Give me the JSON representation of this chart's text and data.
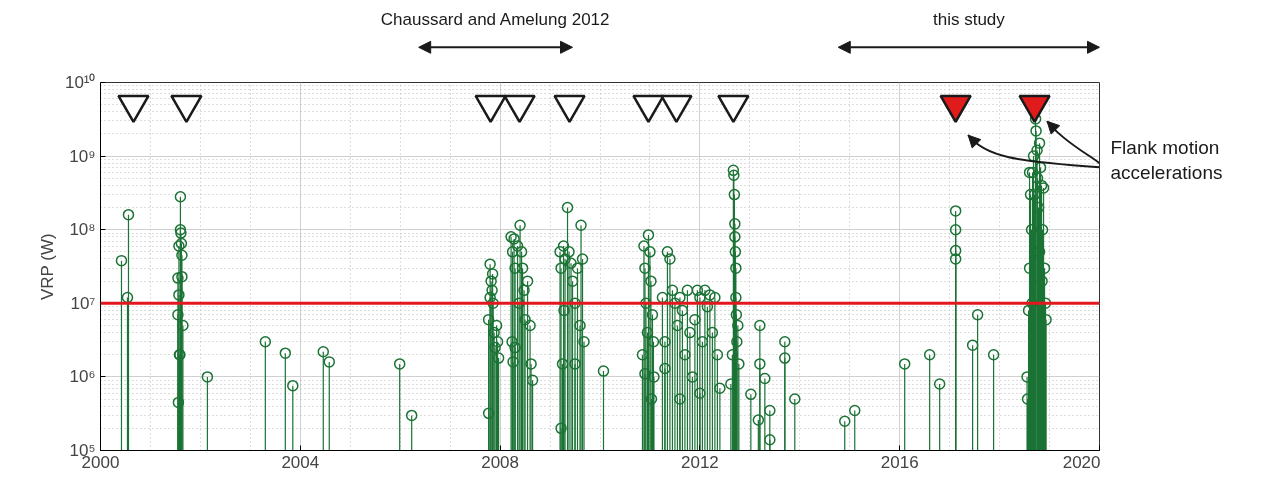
{
  "chart_data": {
    "type": "lollipop",
    "ylabel": "VRP (W)",
    "log": "y",
    "grid": true,
    "marker": "circle",
    "xlim": [
      2000,
      2020
    ],
    "xticks": [
      2000,
      2004,
      2008,
      2012,
      2016,
      2020
    ],
    "ylim": [
      100000,
      10000000000
    ],
    "yticks": [
      {
        "value": 100000,
        "label": "10⁵"
      },
      {
        "value": 1000000,
        "label": "10⁶"
      },
      {
        "value": 10000000,
        "label": "10⁷"
      },
      {
        "value": 100000000,
        "label": "10⁸"
      },
      {
        "value": 1000000000,
        "label": "10⁹"
      },
      {
        "value": 10000000000,
        "label": "10¹⁰"
      }
    ],
    "ref_lines": [
      {
        "axis": "y",
        "value": 10000000,
        "label": null,
        "color": "#e3171e"
      }
    ],
    "annotations": [
      "Chaussard and Amelung 2012",
      "this study",
      "Flank motion accelerations"
    ],
    "series": [
      {
        "color": "#1b7335",
        "x": [
          2000.42,
          2000.54,
          2000.56,
          2001.55,
          2001.57,
          2001.58,
          2001.6,
          2001.6,
          2001.61,
          2001.62,
          2001.55,
          2001.57,
          2001.63,
          2001.63,
          2001.65,
          2001.56,
          2001.59,
          2002.14,
          2003.3,
          2003.7,
          2003.85,
          2004.46,
          2004.58,
          2005.99,
          2006.23,
          2007.77,
          2007.77,
          2007.8,
          2007.82,
          2007.84,
          2007.86,
          2007.88,
          2007.9,
          2007.93,
          2007.95,
          2007.97,
          2007.8,
          2007.85,
          2008.22,
          2008.25,
          2008.28,
          2008.3,
          2008.35,
          2008.4,
          2008.43,
          2008.45,
          2008.48,
          2008.5,
          2008.24,
          2008.26,
          2008.55,
          2008.6,
          2008.62,
          2008.65,
          2008.38,
          2008.3,
          2009.2,
          2009.22,
          2009.25,
          2009.27,
          2009.3,
          2009.35,
          2009.38,
          2009.42,
          2009.45,
          2009.5,
          2009.55,
          2009.6,
          2009.62,
          2009.65,
          2009.68,
          2009.22,
          2009.28,
          2009.5,
          2010.07,
          2010.85,
          2010.88,
          2010.9,
          2010.92,
          2010.95,
          2010.97,
          2011.0,
          2011.02,
          2011.05,
          2011.07,
          2011.08,
          2010.9,
          2011.03,
          2011.25,
          2011.3,
          2011.35,
          2011.4,
          2011.45,
          2011.5,
          2011.55,
          2011.6,
          2011.65,
          2011.7,
          2011.75,
          2011.8,
          2011.85,
          2011.9,
          2011.95,
          2012.0,
          2012.05,
          2012.1,
          2012.15,
          2012.2,
          2012.25,
          2012.3,
          2012.35,
          2012.4,
          2011.3,
          2011.6,
          2012.0,
          2012.62,
          2012.65,
          2012.67,
          2012.68,
          2012.69,
          2012.7,
          2012.7,
          2012.71,
          2012.72,
          2012.72,
          2012.73,
          2012.74,
          2012.76,
          2012.78,
          2013.02,
          2013.2,
          2013.2,
          2013.17,
          2013.3,
          2013.4,
          2013.4,
          2013.7,
          2013.7,
          2013.9,
          2014.9,
          2015.1,
          2016.1,
          2016.6,
          2016.8,
          2017.12,
          2017.12,
          2017.12,
          2017.12,
          2017.46,
          2017.56,
          2017.88,
          2018.55,
          2018.56,
          2018.58,
          2018.6,
          2018.62,
          2018.64,
          2018.66,
          2018.68,
          2018.7,
          2018.72,
          2018.73,
          2018.75,
          2018.76,
          2018.78,
          2018.8,
          2018.82,
          2018.84,
          2018.86,
          2018.88,
          2018.9,
          2018.92,
          2018.93,
          2018.6,
          2018.65,
          2018.8,
          2018.85
        ],
        "values": [
          38000000,
          12000000,
          160000000,
          22000000,
          60000000,
          2000000,
          280000000,
          100000000,
          90000000,
          65000000,
          7000000,
          13000000,
          45000000,
          23000000,
          5000000,
          450000,
          2000000,
          1000000,
          3000000,
          2100000,
          760000,
          2200000,
          1600000,
          1500000,
          300000,
          320000,
          6000000,
          34000000,
          20000000,
          15000000,
          10000000,
          4000000,
          2500000,
          5000000,
          3000000,
          1800000,
          12000000,
          25000000,
          80000000,
          50000000,
          75000000,
          30000000,
          60000000,
          115000000,
          50000000,
          30000000,
          15000000,
          6000000,
          3000000,
          1600000,
          20000000,
          5000000,
          1500000,
          900000,
          10000000,
          2500000,
          50000000,
          30000000,
          1500000,
          60000000,
          40000000,
          200000000,
          50000000,
          35000000,
          20000000,
          10000000,
          30000000,
          5000000,
          115000000,
          40000000,
          3000000,
          200000,
          8000000,
          1500000,
          1200000,
          2000000,
          60000000,
          30000000,
          10000000,
          4000000,
          85000000,
          50000000,
          20000000,
          7000000,
          3000000,
          1000000,
          1100000,
          500000,
          12000000,
          3000000,
          50000000,
          40000000,
          15000000,
          10000000,
          5000000,
          12000000,
          8000000,
          2000000,
          15000000,
          4000000,
          1000000,
          6000000,
          15000000,
          12000000,
          3000000,
          15000000,
          9000000,
          13000000,
          4000000,
          12000000,
          2000000,
          700000,
          1300000,
          500000,
          600000,
          800000,
          2000000,
          640000000,
          550000000,
          300000000,
          120000000,
          80000000,
          50000000,
          30000000,
          12000000,
          7000000,
          3000000,
          5000000,
          1500000,
          580000,
          5000000,
          1500000,
          260000,
          950000,
          350000,
          140000,
          3000000,
          1800000,
          500000,
          250000,
          350000,
          1500000,
          2000000,
          800000,
          180000000,
          100000000,
          52000000,
          40000000,
          2700000,
          7000000,
          2000000,
          1000000,
          500000,
          8000000,
          600000000,
          300000000,
          100000000,
          600000000,
          1000000000,
          300000000,
          3200000000,
          2200000000,
          1200000000,
          500000000,
          200000000,
          1500000000,
          700000000,
          400000000,
          100000000,
          370000000,
          30000000,
          10000000,
          6000000,
          30000000,
          10000000,
          50000000,
          20000000
        ]
      },
      {
        "type": "scatter",
        "marker": "triangle",
        "color": "#ffffff",
        "x": [
          2000.66,
          2001.72,
          2007.81,
          2008.39,
          2009.39,
          2010.97,
          2011.53,
          2012.67
        ],
        "values": [
          5000000000,
          5000000000,
          5000000000,
          5000000000,
          5000000000,
          5000000000,
          5000000000,
          5000000000
        ]
      },
      {
        "type": "scatter",
        "marker": "triangle",
        "color": "#e01b1b",
        "x": [
          2017.12,
          2018.7
        ],
        "values": [
          5000000000,
          5000000000
        ]
      }
    ]
  }
}
